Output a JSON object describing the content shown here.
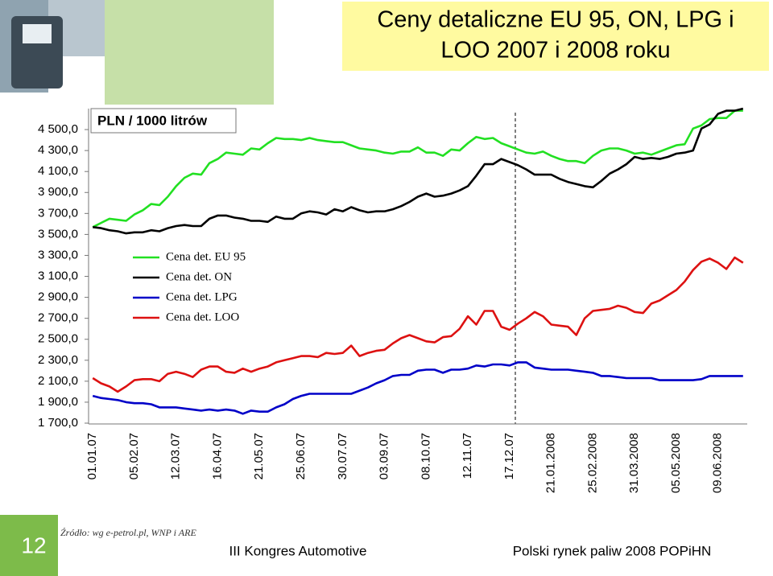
{
  "chart_data": {
    "type": "line",
    "title_lines": [
      "Ceny detaliczne EU 95, ON, LPG i",
      "LOO 2007 i 2008 roku"
    ],
    "unit_label": "PLN / 1000 litrów",
    "source": "Źródło:  wg e-petrol.pl, WNP i ARE",
    "slide_number": "12",
    "footer_left": "III Kongres Automotive",
    "footer_right": "Polski rynek paliw 2008  POPiHN",
    "categories": [
      "01.01.07",
      null,
      null,
      null,
      null,
      "05.02.07",
      null,
      null,
      null,
      null,
      "12.03.07",
      null,
      null,
      null,
      null,
      "16.04.07",
      null,
      null,
      null,
      null,
      "21.05.07",
      null,
      null,
      null,
      null,
      "25.06.07",
      null,
      null,
      null,
      null,
      "30.07.07",
      null,
      null,
      null,
      null,
      "03.09.07",
      null,
      null,
      null,
      null,
      "08.10.07",
      null,
      null,
      null,
      null,
      "12.11.07",
      null,
      null,
      null,
      null,
      "17.12.07",
      null,
      null,
      null,
      null,
      "21.01.2008",
      null,
      null,
      null,
      null,
      "25.02.2008",
      null,
      null,
      null,
      null,
      "31.03.2008",
      null,
      null,
      null,
      null,
      "05.05.2008",
      null,
      null,
      null,
      null,
      "09.06.2008",
      null,
      null,
      null
    ],
    "ylim": [
      1700,
      4700
    ],
    "yticks": [
      {
        "value": 1700,
        "label": "1 700,0"
      },
      {
        "value": 1900,
        "label": "1 900,0"
      },
      {
        "value": 2100,
        "label": "2 100,0"
      },
      {
        "value": 2300,
        "label": "2 300,0"
      },
      {
        "value": 2500,
        "label": "2 500,0"
      },
      {
        "value": 2700,
        "label": "2 700,0"
      },
      {
        "value": 2900,
        "label": "2 900,0"
      },
      {
        "value": 3100,
        "label": "3 100,0"
      },
      {
        "value": 3300,
        "label": "3 300,0"
      },
      {
        "value": 3500,
        "label": "3 500,0"
      },
      {
        "value": 3700,
        "label": "3 700,0"
      },
      {
        "value": 3900,
        "label": "3 900,0"
      },
      {
        "value": 4100,
        "label": "4 100,0"
      },
      {
        "value": 4300,
        "label": "4 300,0"
      },
      {
        "value": 4500,
        "label": "4 500,0"
      }
    ],
    "grid": false,
    "series": [
      {
        "name": "Cena det. EU 95",
        "color": "#22e022",
        "values": [
          3570,
          3610,
          3650,
          3640,
          3630,
          3690,
          3730,
          3790,
          3780,
          3860,
          3960,
          4040,
          4080,
          4070,
          4180,
          4220,
          4280,
          4270,
          4260,
          4320,
          4310,
          4370,
          4420,
          4410,
          4410,
          4400,
          4420,
          4400,
          4390,
          4380,
          4380,
          4350,
          4320,
          4310,
          4300,
          4280,
          4270,
          4290,
          4290,
          4330,
          4280,
          4280,
          4250,
          4310,
          4300,
          4370,
          4430,
          4410,
          4420,
          4370,
          4340,
          4310,
          4280,
          4270,
          4290,
          4250,
          4220,
          4200,
          4200,
          4180,
          4250,
          4300,
          4320,
          4320,
          4300,
          4270,
          4280,
          4260,
          4290,
          4320,
          4350,
          4360,
          4510,
          4540,
          4600,
          4610,
          4610,
          4680,
          4680
        ]
      },
      {
        "name": "Cena det. ON",
        "color": "#000000",
        "values": [
          3570,
          3560,
          3540,
          3530,
          3510,
          3520,
          3520,
          3540,
          3530,
          3560,
          3580,
          3590,
          3580,
          3580,
          3650,
          3680,
          3680,
          3660,
          3650,
          3630,
          3630,
          3620,
          3670,
          3650,
          3650,
          3700,
          3720,
          3710,
          3690,
          3740,
          3720,
          3760,
          3730,
          3710,
          3720,
          3720,
          3740,
          3770,
          3810,
          3860,
          3890,
          3860,
          3870,
          3890,
          3920,
          3960,
          4060,
          4170,
          4170,
          4220,
          4190,
          4160,
          4120,
          4070,
          4070,
          4070,
          4030,
          4000,
          3980,
          3960,
          3950,
          4010,
          4080,
          4120,
          4170,
          4240,
          4220,
          4230,
          4220,
          4240,
          4270,
          4280,
          4300,
          4510,
          4550,
          4650,
          4680,
          4680,
          4700
        ]
      },
      {
        "name": "Cena det. LPG",
        "color": "#0000c8",
        "values": [
          1960,
          1940,
          1930,
          1920,
          1900,
          1890,
          1890,
          1880,
          1850,
          1850,
          1850,
          1840,
          1830,
          1820,
          1830,
          1820,
          1830,
          1820,
          1790,
          1820,
          1810,
          1810,
          1850,
          1880,
          1930,
          1960,
          1980,
          1980,
          1980,
          1980,
          1980,
          1980,
          2010,
          2040,
          2080,
          2110,
          2150,
          2160,
          2160,
          2200,
          2210,
          2210,
          2180,
          2210,
          2210,
          2220,
          2250,
          2240,
          2260,
          2260,
          2250,
          2280,
          2280,
          2230,
          2220,
          2210,
          2210,
          2210,
          2200,
          2190,
          2180,
          2150,
          2150,
          2140,
          2130,
          2130,
          2130,
          2130,
          2110,
          2110,
          2110,
          2110,
          2110,
          2120,
          2150,
          2150,
          2150,
          2150,
          2150
        ]
      },
      {
        "name": "Cena det. LOO",
        "color": "#dd1111",
        "values": [
          2130,
          2080,
          2050,
          2000,
          2050,
          2110,
          2120,
          2120,
          2100,
          2170,
          2190,
          2170,
          2140,
          2210,
          2240,
          2240,
          2190,
          2180,
          2220,
          2190,
          2220,
          2240,
          2280,
          2300,
          2320,
          2340,
          2340,
          2330,
          2370,
          2360,
          2370,
          2440,
          2340,
          2370,
          2390,
          2400,
          2460,
          2510,
          2540,
          2510,
          2480,
          2470,
          2520,
          2530,
          2600,
          2720,
          2640,
          2770,
          2770,
          2620,
          2590,
          2650,
          2700,
          2760,
          2720,
          2640,
          2630,
          2620,
          2540,
          2700,
          2770,
          2780,
          2790,
          2820,
          2800,
          2760,
          2750,
          2840,
          2870,
          2920,
          2970,
          3050,
          3160,
          3240,
          3270,
          3230,
          3170,
          3280,
          3230
        ]
      }
    ]
  }
}
